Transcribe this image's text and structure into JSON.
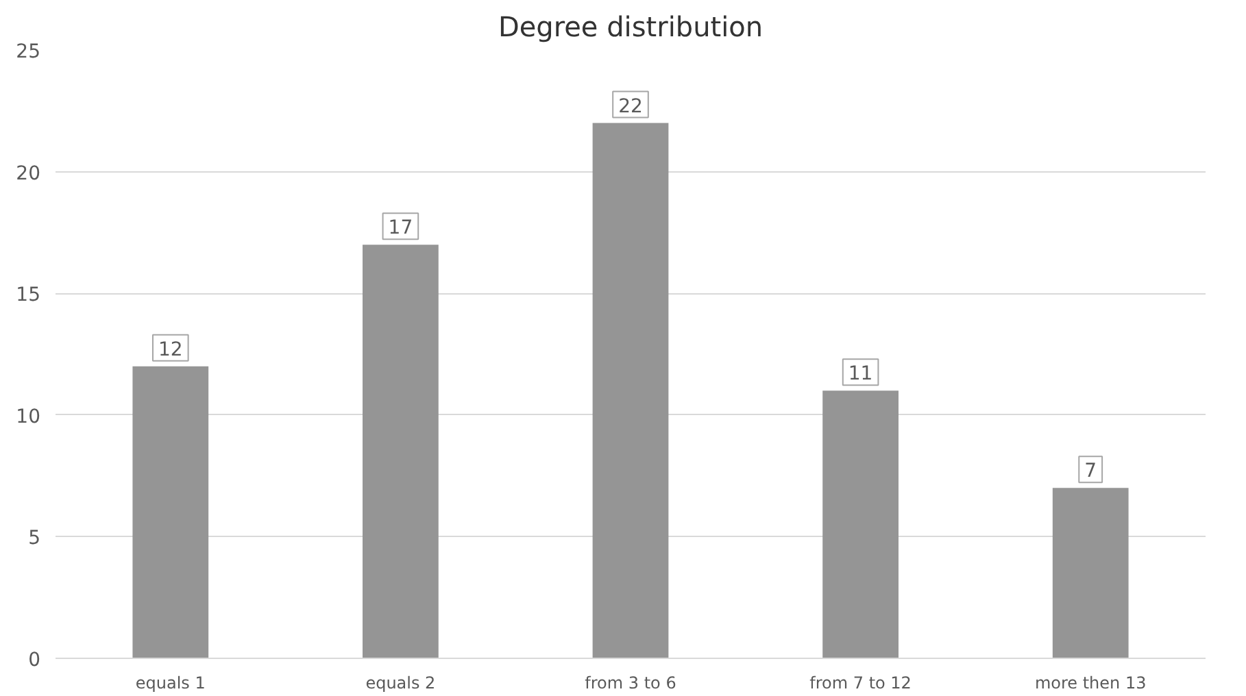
{
  "chart_data": {
    "type": "bar",
    "title": "Degree distribution",
    "categories": [
      "equals 1",
      "equals 2",
      "from 3 to 6",
      "from 7 to 12",
      "more then 13"
    ],
    "values": [
      12,
      17,
      22,
      11,
      7
    ],
    "color": "#959595",
    "ylim": [
      0,
      25
    ],
    "yticks": [
      0,
      5,
      10,
      15,
      20,
      25
    ],
    "grid": "y",
    "data_labels": true
  }
}
